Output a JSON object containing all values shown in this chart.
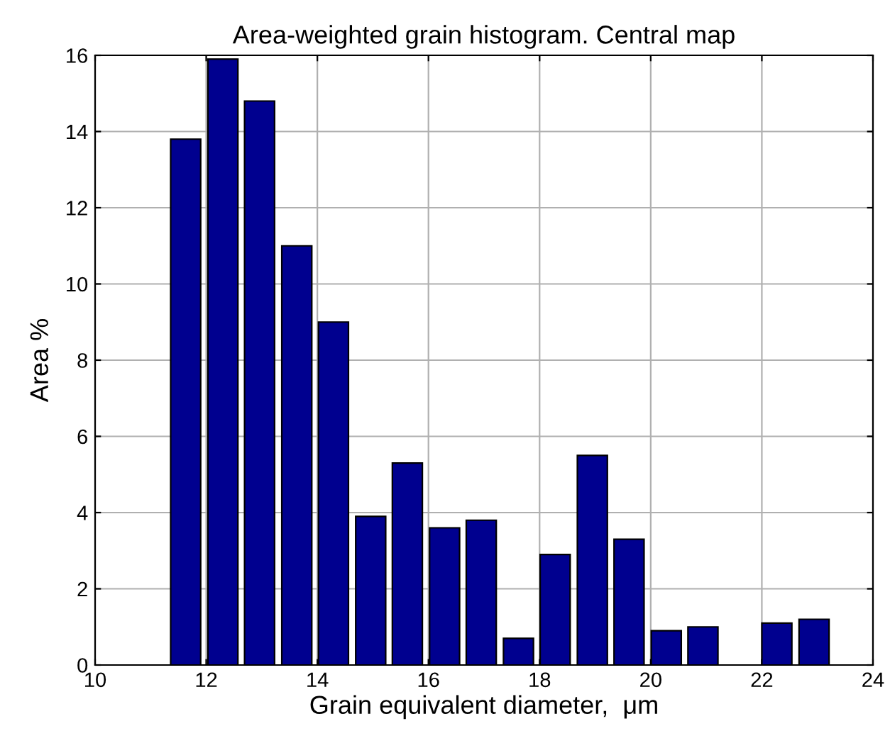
{
  "chart_data": {
    "type": "bar",
    "title": "Area-weighted grain histogram. Central map",
    "xlabel": "Grain equivalent diameter,  μm",
    "ylabel": "Area %",
    "x": [
      11.63,
      12.3,
      12.96,
      13.63,
      14.29,
      14.96,
      15.62,
      16.29,
      16.95,
      17.62,
      18.28,
      18.95,
      19.61,
      20.28,
      20.94,
      22.27,
      22.94
    ],
    "values": [
      13.8,
      15.9,
      14.8,
      11.0,
      9.0,
      3.9,
      5.3,
      3.6,
      3.8,
      0.7,
      2.9,
      5.5,
      3.3,
      0.9,
      1.0,
      1.1,
      1.2
    ],
    "color": "#00008f",
    "xlim": [
      10,
      24
    ],
    "xticks": [
      10,
      12,
      14,
      16,
      18,
      20,
      22,
      24
    ],
    "ylim": [
      0,
      16
    ],
    "yticks": [
      0,
      2,
      4,
      6,
      8,
      10,
      12,
      14,
      16
    ],
    "grid": true
  }
}
